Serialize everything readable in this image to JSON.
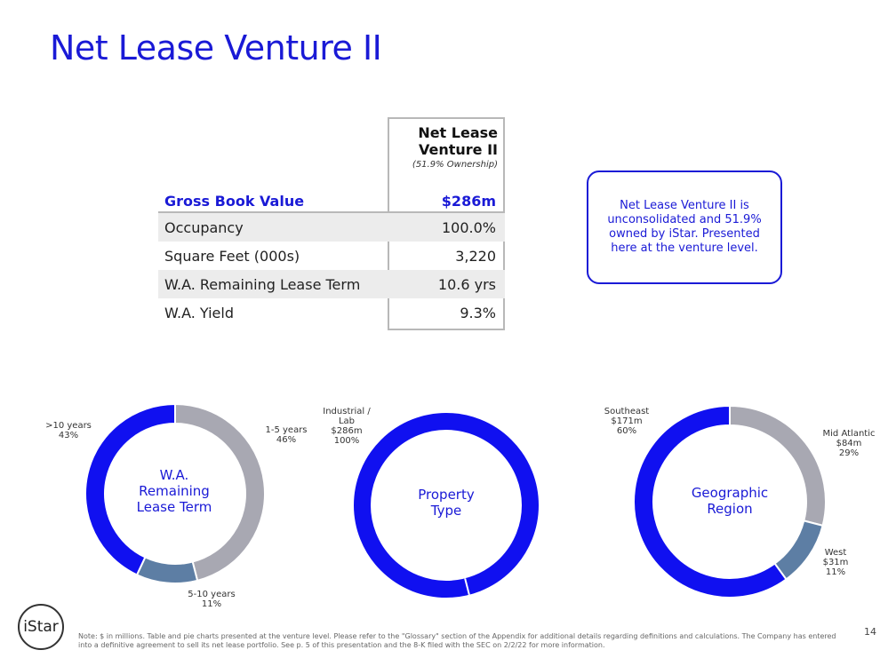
{
  "title": "Net Lease Venture II",
  "table": {
    "header_line1": "Net Lease",
    "header_line2": "Venture II",
    "header_sub": "(51.9% Ownership)",
    "rows": [
      {
        "label": "Gross Book Value",
        "value": "$286m"
      },
      {
        "label": "Occupancy",
        "value": "100.0%"
      },
      {
        "label": "Square Feet (000s)",
        "value": "3,220"
      },
      {
        "label": "W.A. Remaining Lease Term",
        "value": "10.6 yrs"
      },
      {
        "label": "W.A. Yield",
        "value": "9.3%"
      }
    ]
  },
  "callout": "Net Lease Venture II is unconsolidated and 51.9% owned by iStar. Presented here at the venture level.",
  "colors": {
    "blue": "#1010f0",
    "gray": "#a8a8b2",
    "steel": "#5d7ea4"
  },
  "chart_data": [
    {
      "type": "pie",
      "title_lines": [
        "W.A.",
        "Remaining",
        "Lease Term"
      ],
      "slices": [
        {
          "label": "1-5 years",
          "value": 46,
          "pct_text": "46%",
          "color": "#a8a8b2"
        },
        {
          "label": "5-10 years",
          "value": 11,
          "pct_text": "11%",
          "color": "#5d7ea4"
        },
        {
          "label": ">10 years",
          "value": 43,
          "pct_text": "43%",
          "color": "#1010f0"
        }
      ]
    },
    {
      "type": "pie",
      "title_lines": [
        "Property",
        "Type"
      ],
      "slices": [
        {
          "label_lines": [
            "Industrial /",
            "Lab",
            "$286m"
          ],
          "value": 100,
          "pct_text": "100%",
          "color": "#1010f0"
        }
      ]
    },
    {
      "type": "pie",
      "title_lines": [
        "Geographic",
        "Region"
      ],
      "slices": [
        {
          "label": "Mid Atlantic",
          "amount": "$84m",
          "value": 29,
          "pct_text": "29%",
          "color": "#a8a8b2"
        },
        {
          "label": "West",
          "amount": "$31m",
          "value": 11,
          "pct_text": "11%",
          "color": "#5d7ea4"
        },
        {
          "label": "Southeast",
          "amount": "$171m",
          "value": 60,
          "pct_text": "60%",
          "color": "#1010f0"
        }
      ]
    }
  ],
  "logo_text": "iStar",
  "footnote": "Note: $ in millions. Table and pie charts presented at the venture level. Please refer to the \"Glossary\" section of the Appendix for additional details regarding definitions and calculations. The Company has entered into a definitive agreement to sell its net lease portfolio. See p. 5 of this presentation and the 8-K filed with the SEC on 2/2/22 for more information.",
  "page_number": "14"
}
